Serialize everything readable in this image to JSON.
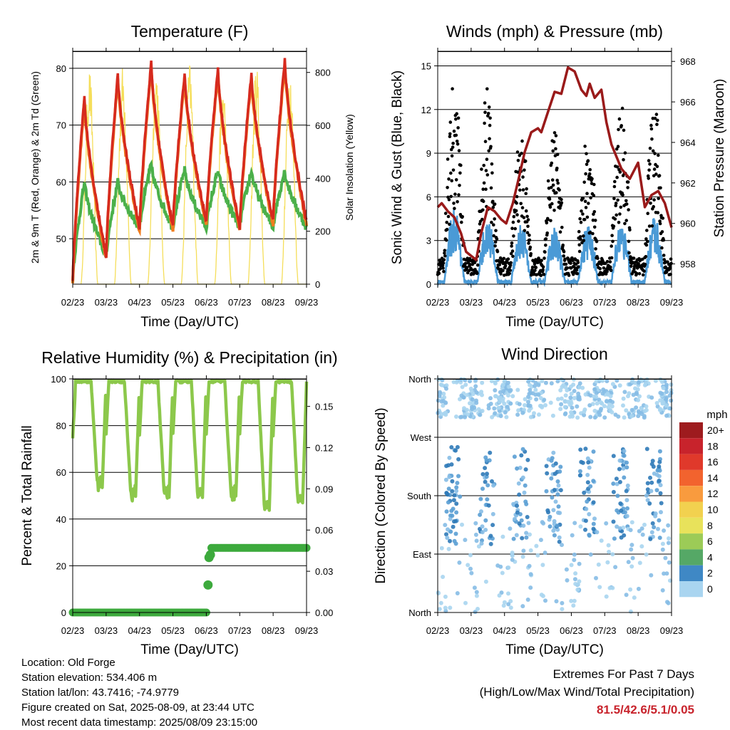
{
  "panels": {
    "temperature": {
      "title": "Temperature (F)",
      "xlabel": "Time (Day/UTC)",
      "ylabel_left": "2m & 9m T (Red, Orange) & 2m Td (Green)",
      "ylabel_right": "Solar Insolation (Yellow)"
    },
    "winds": {
      "title": "Winds (mph) & Pressure (mb)",
      "xlabel": "Time (Day/UTC)",
      "ylabel_left": "Sonic Wind & Gust (Blue, Black)",
      "ylabel_right": "Station Pressure (Maroon)"
    },
    "humidity": {
      "title": "Relative Humidity (%) & Precipitation (in)",
      "xlabel": "Time (Day/UTC)",
      "ylabel_left": "Percent & Total Rainfall"
    },
    "direction": {
      "title": "Wind Direction",
      "xlabel": "Time (Day/UTC)",
      "ylabel_left": "Direction (Colored By Speed)",
      "legend_title": "mph"
    }
  },
  "info": {
    "location": "Location: Old Forge",
    "elevation": "Station elevation: 534.406 m",
    "latlon": "Station lat/lon: 43.7416; -74.9779",
    "created": "Figure created on Sat, 2025-08-09, at 23:44 UTC",
    "recent": "Most recent data timestamp: 2025/08/09 23:15:00"
  },
  "extremes": {
    "line1": "Extremes For Past 7 Days",
    "line2": "(High/Low/Max Wind/Total Precipitation)",
    "value": "81.5/42.6/5.1/0.05"
  },
  "colors": {
    "temp_2m": "#d62a1e",
    "temp_9m": "#f07d1f",
    "dewpoint": "#4bb04a",
    "solar": "#f5de5a",
    "wind": "#4a9ad6",
    "gust": "#000000",
    "pressure": "#9a1a1a",
    "rh": "#8cc84b",
    "precip": "#3daa3d"
  },
  "chart_data": [
    {
      "type": "line",
      "id": "temperature",
      "title": "Temperature (F)",
      "xlabel": "Time (Day/UTC)",
      "ylabel": "2m & 9m T (Red, Orange) & 2m Td (Green)",
      "y2label": "Solar Insolation (Yellow)",
      "x_ticks": [
        "02/23",
        "03/23",
        "04/23",
        "05/23",
        "06/23",
        "07/23",
        "08/23",
        "09/23"
      ],
      "xlim": [
        0,
        7
      ],
      "ylim": [
        42,
        83
      ],
      "y_ticks": [
        50,
        60,
        70,
        80
      ],
      "y2lim": [
        0,
        880
      ],
      "y2_ticks": [
        0,
        200,
        400,
        600,
        800
      ],
      "grid": true,
      "daily_max_temp": [
        75,
        79,
        81,
        79,
        80,
        79,
        81.5
      ],
      "daily_min_temp": [
        42.6,
        47,
        52,
        52,
        53,
        52,
        53
      ],
      "daily_max_dewpoint": [
        60,
        60,
        63,
        62,
        62,
        62,
        62
      ],
      "daily_min_dewpoint": [
        43,
        47,
        52,
        52,
        52,
        52,
        52
      ],
      "daily_peak_solar": [
        820,
        830,
        835,
        840,
        780,
        840,
        830
      ]
    },
    {
      "type": "scatter",
      "id": "winds",
      "title": "Winds (mph) & Pressure (mb)",
      "xlabel": "Time (Day/UTC)",
      "ylabel": "Sonic Wind & Gust (Blue, Black)",
      "y2label": "Station Pressure (Maroon)",
      "x_ticks": [
        "02/23",
        "03/23",
        "04/23",
        "05/23",
        "06/23",
        "07/23",
        "08/23",
        "09/23"
      ],
      "xlim": [
        0,
        7
      ],
      "ylim": [
        0,
        16
      ],
      "y_ticks": [
        0,
        3,
        6,
        9,
        12,
        15
      ],
      "y2lim": [
        957,
        968.5
      ],
      "y2_ticks": [
        958,
        960,
        962,
        964,
        966,
        968
      ],
      "grid": true,
      "daily_max_gust": [
        12.5,
        12,
        9.5,
        9.5,
        9,
        11.5,
        11
      ],
      "daily_max_wind": [
        5.1,
        4.5,
        4.2,
        3.8,
        4.0,
        4.5,
        4.5
      ],
      "pressure_series": {
        "x": [
          0,
          0.12,
          0.3,
          0.5,
          0.7,
          0.85,
          1.0,
          1.15,
          1.3,
          1.5,
          1.7,
          1.9,
          2.05,
          2.25,
          2.45,
          2.6,
          2.8,
          3.0,
          3.1,
          3.3,
          3.5,
          3.7,
          3.9,
          4.1,
          4.3,
          4.45,
          4.55,
          4.7,
          4.9,
          5.05,
          5.2,
          5.5,
          5.75,
          6.0,
          6.2,
          6.4,
          6.6,
          6.8,
          7.0
        ],
        "y": [
          960.8,
          961.0,
          960.6,
          960.3,
          959.5,
          958.6,
          958.4,
          958.2,
          959.5,
          960.8,
          960.6,
          960.2,
          960.0,
          961.0,
          962.4,
          963.5,
          964.5,
          964.7,
          964.5,
          965.5,
          966.5,
          966.4,
          967.7,
          967.5,
          966.6,
          966.3,
          966.9,
          966.2,
          966.6,
          965.0,
          963.9,
          962.7,
          962.2,
          963.0,
          960.8,
          961.4,
          961.6,
          961.0,
          959.8
        ]
      }
    },
    {
      "type": "line",
      "id": "humidity",
      "title": "Relative Humidity (%) & Precipitation (in)",
      "xlabel": "Time (Day/UTC)",
      "ylabel": "Percent & Total Rainfall",
      "x_ticks": [
        "02/23",
        "03/23",
        "04/23",
        "05/23",
        "06/23",
        "07/23",
        "08/23",
        "09/23"
      ],
      "xlim": [
        0,
        7
      ],
      "ylim": [
        0,
        100
      ],
      "y_ticks": [
        0,
        20,
        40,
        60,
        80,
        100
      ],
      "y2lim": [
        0,
        0.17
      ],
      "y2_ticks": [
        "0.00",
        "0.03",
        "0.06",
        "0.09",
        "0.12",
        "0.15"
      ],
      "grid": true,
      "daily_max_rh": [
        99,
        99,
        99,
        99,
        99,
        99,
        99
      ],
      "daily_min_rh": [
        52,
        48,
        48,
        48,
        48,
        42,
        45
      ],
      "precip_total": {
        "x": [
          0,
          4.0,
          4.05,
          4.1,
          4.15,
          7.0
        ],
        "y": [
          0,
          0,
          0.02,
          0.04,
          0.047,
          0.047
        ]
      }
    },
    {
      "type": "scatter",
      "id": "direction",
      "title": "Wind Direction",
      "xlabel": "Time (Day/UTC)",
      "ylabel": "Direction (Colored By Speed)",
      "x_ticks": [
        "02/23",
        "03/23",
        "04/23",
        "05/23",
        "06/23",
        "07/23",
        "08/23",
        "09/23"
      ],
      "xlim": [
        0,
        7
      ],
      "y_categories": [
        "North",
        "East",
        "South",
        "West",
        "North"
      ],
      "ylim": [
        0,
        360
      ],
      "grid": true,
      "legend": {
        "title": "mph",
        "labels": [
          "20+",
          "18",
          "16",
          "14",
          "12",
          "10",
          "8",
          "6",
          "4",
          "2",
          "0"
        ],
        "colors": [
          "#9e1b1e",
          "#c8232c",
          "#e0392b",
          "#f2632e",
          "#f99b3e",
          "#f2d14f",
          "#e8e25b",
          "#9ccb57",
          "#55a866",
          "#3f88c5",
          "#a9d5f0"
        ]
      }
    }
  ]
}
